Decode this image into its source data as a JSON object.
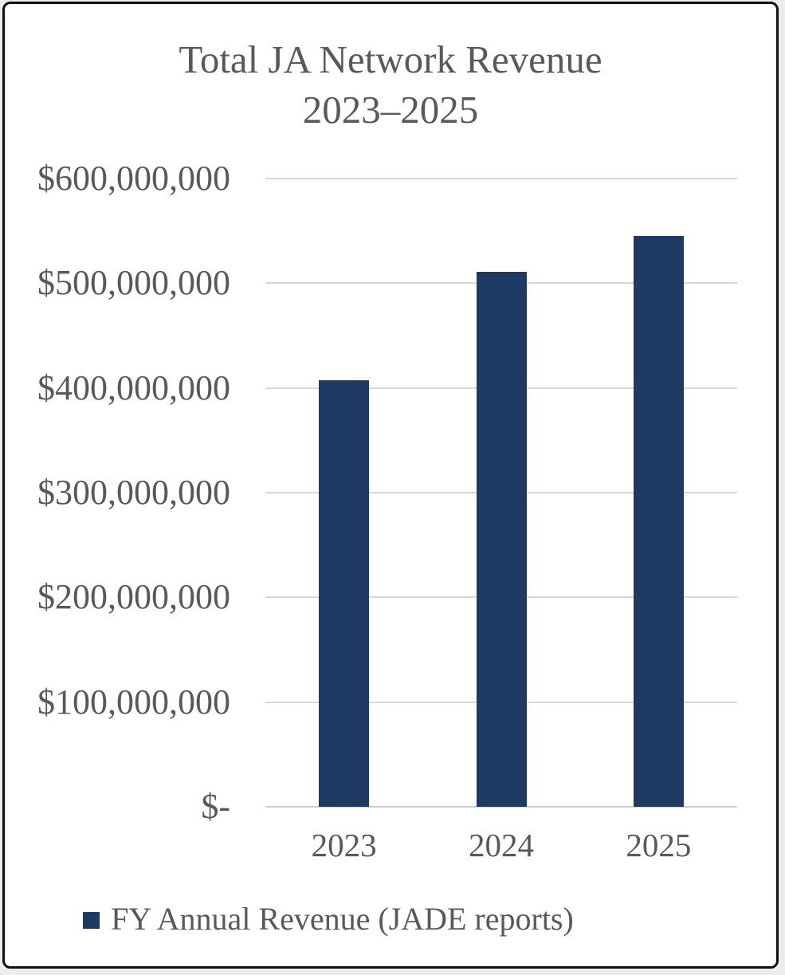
{
  "window": {
    "background": "#ececec",
    "card_background": "#ffffff",
    "card_border_color": "#101010"
  },
  "chart_data": {
    "type": "bar",
    "title_line1": "Total JA Network Revenue",
    "title_line2": "2023–2025",
    "categories": [
      "2023",
      "2024",
      "2025"
    ],
    "series": [
      {
        "name": "FY Annual Revenue (JADE reports)",
        "values": [
          407000000,
          511000000,
          545000000
        ]
      }
    ],
    "ylim": [
      0,
      600000000
    ],
    "ytick_interval": 100000000,
    "yticks": [
      {
        "value": 600000000,
        "label": "$600,000,000"
      },
      {
        "value": 500000000,
        "label": "$500,000,000"
      },
      {
        "value": 400000000,
        "label": "$400,000,000"
      },
      {
        "value": 300000000,
        "label": "$300,000,000"
      },
      {
        "value": 200000000,
        "label": "$200,000,000"
      },
      {
        "value": 100000000,
        "label": "$100,000,000"
      },
      {
        "value": 0,
        "label": "$-"
      }
    ],
    "grid": true,
    "legend": {
      "position": "bottom",
      "label": "FY Annual Revenue (JADE reports)"
    },
    "colors": {
      "bar": "#1C3A63",
      "text": "#595959",
      "gridline": "#D9D9D9",
      "axis_line": "#CFCFCF"
    }
  }
}
